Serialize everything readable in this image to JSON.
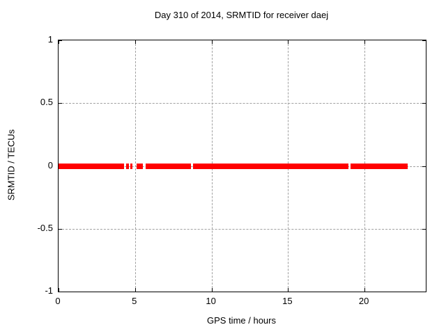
{
  "page": {
    "title": "Day 310 of 2014, SRMTID for receiver daej"
  },
  "chart_data": {
    "type": "line",
    "title": "Day 310 of 2014, SRMTID for receiver daej",
    "xlabel": "GPS time / hours",
    "ylabel": "SRMTID / TECUs",
    "xlim": [
      0,
      24
    ],
    "ylim": [
      -1,
      1
    ],
    "xticks": [
      0,
      5,
      10,
      15,
      20
    ],
    "xtick_labels": [
      "0",
      "5",
      "10",
      "15",
      "20"
    ],
    "yticks": [
      1,
      0.5,
      0,
      -0.5,
      -1
    ],
    "ytick_labels": [
      "1",
      "0.5",
      "0",
      "-0.5",
      "-1"
    ],
    "grid": true,
    "legend": "none",
    "style": {
      "series_color": "#ff0000",
      "grid_color": "#a0a0a0",
      "axis_color": "#000000",
      "background_color": "#ffffff",
      "line_thickness_px": 8
    },
    "series": [
      {
        "name": "SRMTID",
        "color": "#ff0000",
        "y_value": 0,
        "note": "flat thick red line at y=0 with data gaps",
        "segments_x_hours": [
          [
            0.0,
            4.3
          ],
          [
            4.41,
            4.61
          ],
          [
            4.7,
            4.84
          ],
          [
            5.08,
            5.53
          ],
          [
            5.67,
            8.67
          ],
          [
            8.8,
            18.95
          ],
          [
            19.08,
            22.82
          ]
        ]
      }
    ]
  }
}
